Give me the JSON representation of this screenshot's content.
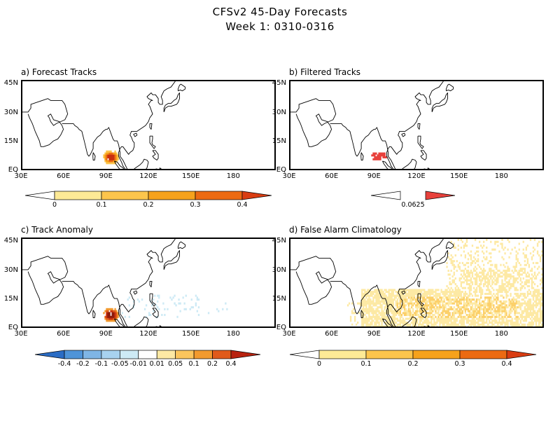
{
  "title_line1": "CFSv2 45-Day Forecasts",
  "title_line2": "Week 1: 0310-0316",
  "panels": {
    "a": {
      "title": "a) Forecast Tracks"
    },
    "b": {
      "title": "b) Filtered Tracks"
    },
    "c": {
      "title": "c) Track Anomaly"
    },
    "d": {
      "title": "d) False Alarm Climatology"
    }
  },
  "lat_labels": [
    "45N",
    "30N",
    "15N",
    "EQ"
  ],
  "lon_labels": [
    "30E",
    "60E",
    "90E",
    "120E",
    "150E",
    "180"
  ],
  "colorbars": {
    "a": {
      "labels": [
        "0",
        "0.1",
        "0.2",
        "0.3",
        "0.4"
      ],
      "colors": [
        "#ffffff",
        "#fdea96",
        "#fcc54c",
        "#f6a21c",
        "#ec6a12",
        "#d93d12"
      ]
    },
    "b": {
      "labels": [
        "0.0625"
      ],
      "colors": [
        "#ffffff",
        "#e8413c"
      ]
    },
    "c": {
      "labels": [
        "-0.4",
        "-0.2",
        "-0.1",
        "-0.05",
        "-0.01",
        "0.01",
        "0.05",
        "0.1",
        "0.2",
        "0.4"
      ],
      "colors": [
        "#2a6cc4",
        "#4f94d8",
        "#7fb5e5",
        "#a8d2ef",
        "#cdeaf5",
        "#ffffff",
        "#fde9a4",
        "#fbc55d",
        "#f29a2e",
        "#e05a1a",
        "#b8220f"
      ]
    },
    "d": {
      "labels": [
        "0",
        "0.1",
        "0.2",
        "0.3",
        "0.4"
      ],
      "colors": [
        "#ffffff",
        "#fdea96",
        "#fcc54c",
        "#f6a21c",
        "#ec6a12",
        "#d93d12"
      ]
    }
  }
}
